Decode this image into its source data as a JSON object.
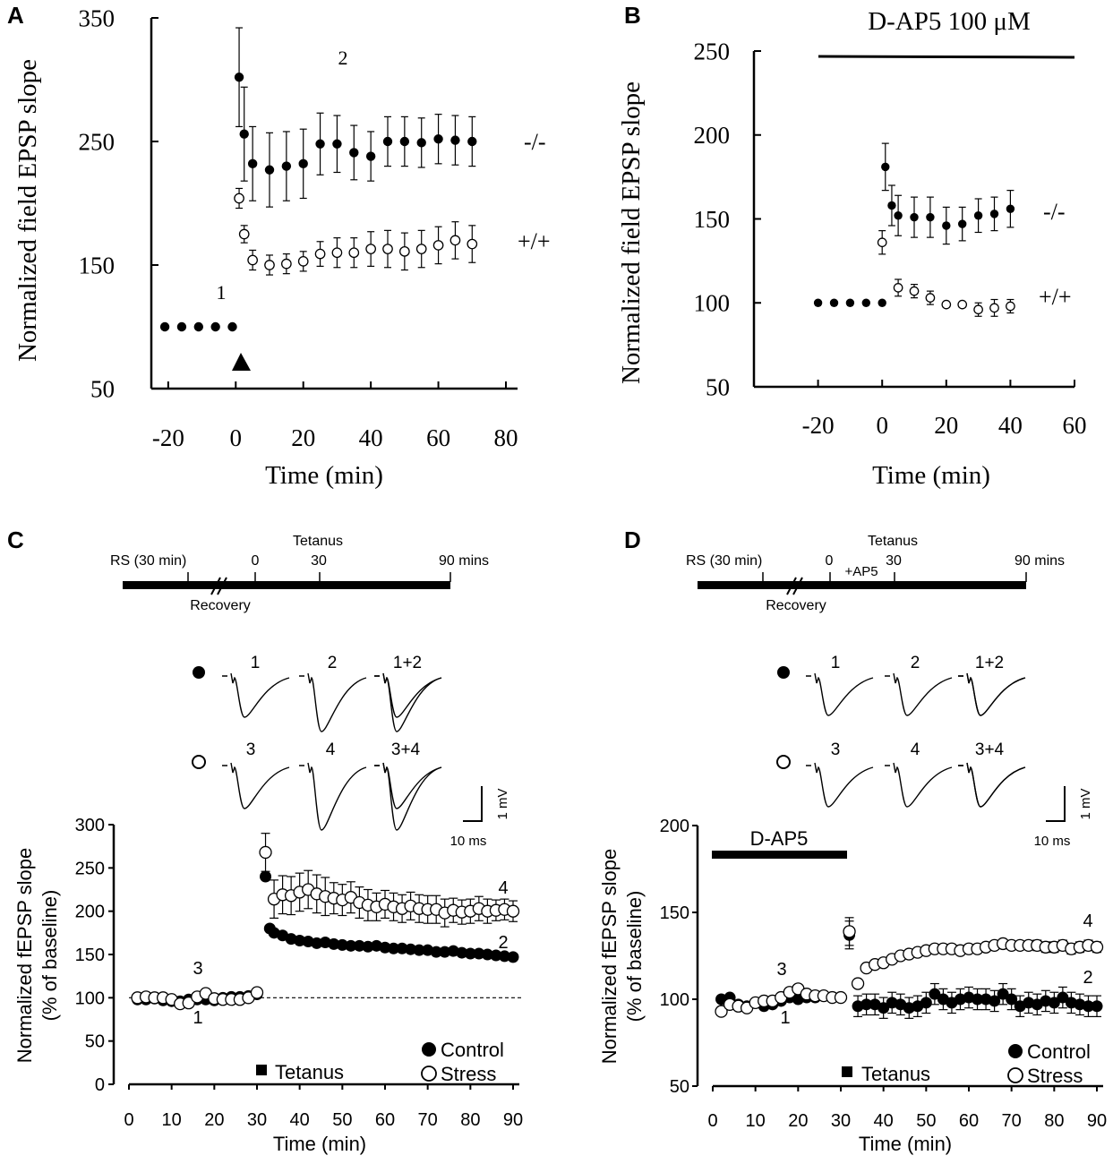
{
  "chart_data": [
    {
      "panel": "A",
      "type": "scatter",
      "title": "",
      "xlabel": "Time (min)",
      "ylabel": "Normalized field EPSP slope",
      "xlim": [
        -25,
        80
      ],
      "ylim": [
        50,
        350
      ],
      "xticks": [
        -20,
        0,
        20,
        40,
        60,
        80
      ],
      "yticks": [
        50,
        150,
        250,
        350
      ],
      "annotations": [
        "1",
        "2"
      ],
      "series": [
        {
          "name": "-/-",
          "marker": "filled",
          "x": [
            -21,
            -16,
            -11,
            -6,
            -1,
            1,
            2.5,
            5,
            10,
            15,
            20,
            25,
            30,
            35,
            40,
            45,
            50,
            55,
            60,
            65,
            70
          ],
          "y": [
            100,
            100,
            100,
            100,
            100,
            302,
            256,
            232,
            227,
            230,
            232,
            248,
            248,
            241,
            238,
            250,
            250,
            249,
            252,
            251,
            250
          ],
          "err": [
            0,
            0,
            0,
            0,
            0,
            40,
            38,
            30,
            30,
            28,
            28,
            25,
            23,
            22,
            20,
            20,
            20,
            20,
            20,
            20,
            20
          ]
        },
        {
          "name": "+/+",
          "marker": "open",
          "x": [
            1,
            2.5,
            5,
            10,
            15,
            20,
            25,
            30,
            35,
            40,
            45,
            50,
            55,
            60,
            65,
            70
          ],
          "y": [
            204,
            175,
            154,
            150,
            151,
            153,
            159,
            160,
            160,
            163,
            163,
            161,
            163,
            166,
            170,
            167
          ],
          "err": [
            8,
            7,
            8,
            8,
            8,
            8,
            10,
            12,
            12,
            14,
            15,
            15,
            15,
            15,
            15,
            15
          ]
        }
      ]
    },
    {
      "panel": "B",
      "type": "scatter",
      "title": "D-AP5 100 μM",
      "xlabel": "Time (min)",
      "ylabel": "Normalized field EPSP slope",
      "xlim": [
        -40,
        60
      ],
      "ylim": [
        50,
        250
      ],
      "xticks": [
        -20,
        0,
        20,
        40,
        60
      ],
      "yticks": [
        50,
        100,
        150,
        200,
        250
      ],
      "series": [
        {
          "name": "-/-",
          "marker": "filled",
          "x": [
            -20,
            -15,
            -10,
            -5,
            0,
            1,
            3,
            5,
            10,
            15,
            20,
            25,
            30,
            35,
            40
          ],
          "y": [
            100,
            100,
            100,
            100,
            100,
            181,
            158,
            152,
            151,
            151,
            146,
            147,
            152,
            153,
            156
          ],
          "err": [
            0,
            0,
            0,
            0,
            0,
            14,
            12,
            12,
            12,
            12,
            11,
            10,
            10,
            10,
            11
          ]
        },
        {
          "name": "+/+",
          "marker": "open",
          "x": [
            0,
            5,
            10,
            15,
            20,
            25,
            30,
            35,
            40
          ],
          "y": [
            136,
            109,
            107,
            103,
            99,
            99,
            96,
            97,
            98
          ],
          "err": [
            7,
            5,
            4,
            4,
            0,
            0,
            4,
            5,
            4
          ]
        }
      ]
    },
    {
      "panel": "C",
      "type": "scatter",
      "title": "",
      "xlabel": "Time (min)",
      "ylabel": "Normalized fEPSP slope",
      "ylabel2": "(% of baseline)",
      "xlim": [
        0,
        90
      ],
      "ylim": [
        0,
        300
      ],
      "xticks": [
        0,
        10,
        20,
        30,
        40,
        50,
        60,
        70,
        80,
        90
      ],
      "yticks": [
        0,
        50,
        100,
        150,
        200,
        250,
        300
      ],
      "baseline": 100,
      "series": [
        {
          "name": "Control",
          "marker": "filled",
          "x": [
            2,
            4,
            6,
            8,
            10,
            12,
            14,
            16,
            18,
            20,
            22,
            24,
            26,
            28,
            30,
            32,
            33,
            34,
            36,
            38,
            40,
            42,
            44,
            46,
            48,
            50,
            52,
            54,
            56,
            58,
            60,
            62,
            64,
            66,
            68,
            70,
            72,
            74,
            76,
            78,
            80,
            82,
            84,
            86,
            88,
            90
          ],
          "y": [
            98,
            98,
            99,
            97,
            96,
            96,
            98,
            98,
            98,
            97,
            100,
            101,
            101,
            102,
            104,
            240,
            180,
            175,
            172,
            168,
            166,
            165,
            163,
            164,
            162,
            161,
            160,
            160,
            159,
            160,
            158,
            157,
            157,
            156,
            155,
            155,
            153,
            153,
            154,
            152,
            151,
            151,
            150,
            149,
            148,
            147
          ]
        },
        {
          "name": "Stress",
          "marker": "open",
          "x": [
            2,
            4,
            6,
            8,
            10,
            12,
            14,
            16,
            18,
            20,
            22,
            24,
            26,
            28,
            30,
            32,
            34,
            36,
            38,
            40,
            42,
            44,
            46,
            48,
            50,
            52,
            54,
            56,
            58,
            60,
            62,
            64,
            66,
            68,
            70,
            72,
            74,
            76,
            78,
            80,
            82,
            84,
            86,
            88,
            90
          ],
          "y": [
            100,
            101,
            100,
            100,
            98,
            93,
            94,
            101,
            105,
            99,
            98,
            98,
            98,
            100,
            106,
            268,
            214,
            219,
            218,
            222,
            225,
            220,
            217,
            215,
            213,
            216,
            210,
            207,
            205,
            208,
            205,
            203,
            206,
            203,
            202,
            202,
            198,
            201,
            199,
            200,
            203,
            200,
            201,
            202,
            200
          ],
          "err": [
            0,
            0,
            0,
            0,
            0,
            0,
            0,
            0,
            0,
            0,
            0,
            0,
            0,
            0,
            0,
            22,
            22,
            22,
            22,
            22,
            22,
            22,
            22,
            18,
            18,
            18,
            18,
            18,
            16,
            16,
            16,
            16,
            16,
            16,
            16,
            16,
            16,
            14,
            14,
            14,
            14,
            14,
            12,
            12,
            12
          ]
        }
      ],
      "annotations": [
        "1",
        "2",
        "3",
        "4"
      ],
      "legend": {
        "control": "Control",
        "stress": "Stress",
        "tetanus": "Tetanus"
      },
      "timeline": {
        "rs": "RS (30 min)",
        "zero": "0",
        "thirty": "30",
        "end": "90 mins",
        "tetanus": "Tetanus",
        "recovery": "Recovery"
      },
      "traces": {
        "t1": "1",
        "t2": "2",
        "t12": "1+2",
        "t3": "3",
        "t4": "4",
        "t34": "3+4",
        "scale_v": "1 mV",
        "scale_t": "10 ms"
      }
    },
    {
      "panel": "D",
      "type": "scatter",
      "title": "",
      "xlabel": "Time (min)",
      "ylabel": "Normalized fEPSP slope",
      "ylabel2": "(% of baseline)",
      "xlim": [
        0,
        90
      ],
      "ylim": [
        50,
        200
      ],
      "xticks": [
        0,
        10,
        20,
        30,
        40,
        50,
        60,
        70,
        80,
        90
      ],
      "yticks": [
        50,
        100,
        150,
        200
      ],
      "drug_bar": "D-AP5",
      "series": [
        {
          "name": "Control",
          "marker": "filled",
          "x": [
            2,
            4,
            6,
            8,
            10,
            12,
            14,
            16,
            18,
            20,
            22,
            24,
            26,
            28,
            30,
            32,
            34,
            36,
            38,
            40,
            42,
            44,
            46,
            48,
            50,
            52,
            54,
            56,
            58,
            60,
            62,
            64,
            66,
            68,
            70,
            72,
            74,
            76,
            78,
            80,
            82,
            84,
            86,
            88,
            90
          ],
          "y": [
            100,
            101,
            97,
            96,
            98,
            96,
            97,
            99,
            101,
            100,
            101,
            101,
            102,
            101,
            101,
            137,
            96,
            97,
            97,
            95,
            98,
            97,
            95,
            96,
            98,
            103,
            100,
            98,
            100,
            101,
            100,
            100,
            99,
            103,
            100,
            96,
            98,
            97,
            99,
            98,
            101,
            98,
            97,
            96,
            96
          ],
          "err": [
            0,
            0,
            0,
            0,
            0,
            0,
            0,
            0,
            0,
            0,
            0,
            0,
            0,
            0,
            0,
            8,
            6,
            6,
            6,
            6,
            6,
            6,
            6,
            6,
            6,
            6,
            6,
            6,
            6,
            6,
            6,
            6,
            6,
            6,
            6,
            6,
            6,
            6,
            6,
            6,
            6,
            6,
            6,
            6,
            6
          ]
        },
        {
          "name": "Stress",
          "marker": "open",
          "x": [
            2,
            4,
            6,
            8,
            10,
            12,
            14,
            16,
            18,
            20,
            22,
            24,
            26,
            28,
            30,
            32,
            34,
            36,
            38,
            40,
            42,
            44,
            46,
            48,
            50,
            52,
            54,
            56,
            58,
            60,
            62,
            64,
            66,
            68,
            70,
            72,
            74,
            76,
            78,
            80,
            82,
            84,
            86,
            88,
            90
          ],
          "y": [
            93,
            97,
            96,
            95,
            98,
            99,
            99,
            101,
            104,
            106,
            103,
            102,
            102,
            101,
            101,
            139,
            109,
            118,
            120,
            121,
            123,
            125,
            126,
            127,
            128,
            129,
            129,
            129,
            128,
            129,
            129,
            130,
            131,
            132,
            131,
            131,
            131,
            131,
            130,
            130,
            131,
            129,
            130,
            131,
            130
          ],
          "err": [
            0,
            0,
            0,
            0,
            0,
            0,
            0,
            0,
            0,
            0,
            0,
            0,
            0,
            0,
            0,
            8,
            0,
            0,
            0,
            0,
            0,
            0,
            0,
            0,
            2,
            2,
            2,
            2,
            2,
            2,
            2,
            2,
            2,
            2,
            2,
            2,
            2,
            3,
            3,
            3,
            3,
            3,
            3,
            3,
            3
          ]
        }
      ],
      "annotations": [
        "1",
        "2",
        "3",
        "4"
      ],
      "legend": {
        "control": "Control",
        "stress": "Stress",
        "tetanus": "Tetanus"
      },
      "timeline": {
        "rs": "RS (30 min)",
        "zero": "0",
        "thirty": "30",
        "end": "90 mins",
        "tetanus": "Tetanus",
        "recovery": "Recovery",
        "ap5": "+AP5"
      },
      "traces": {
        "t1": "1",
        "t2": "2",
        "t12": "1+2",
        "t3": "3",
        "t4": "4",
        "t34": "3+4",
        "scale_v": "1 mV",
        "scale_t": "10 ms"
      }
    }
  ],
  "panel_labels": {
    "a": "A",
    "b": "B",
    "c": "C",
    "d": "D"
  },
  "series_labels": {
    "ko": "-/-",
    "wt": "+/+"
  }
}
